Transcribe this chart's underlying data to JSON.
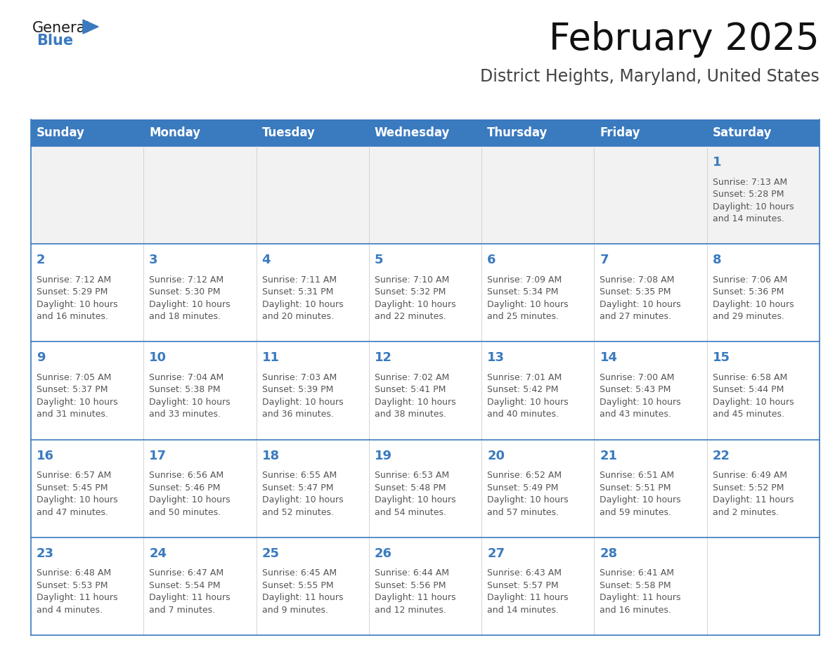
{
  "title": "February 2025",
  "subtitle": "District Heights, Maryland, United States",
  "header_color": "#3a7abf",
  "header_text_color": "#ffffff",
  "cell_bg_white": "#ffffff",
  "cell_bg_gray": "#f2f2f2",
  "cell_border_color": "#3a7abf",
  "day_number_color": "#3a7abf",
  "cell_text_color": "#555555",
  "days_of_week": [
    "Sunday",
    "Monday",
    "Tuesday",
    "Wednesday",
    "Thursday",
    "Friday",
    "Saturday"
  ],
  "weeks": [
    [
      {
        "day": "",
        "info": ""
      },
      {
        "day": "",
        "info": ""
      },
      {
        "day": "",
        "info": ""
      },
      {
        "day": "",
        "info": ""
      },
      {
        "day": "",
        "info": ""
      },
      {
        "day": "",
        "info": ""
      },
      {
        "day": "1",
        "info": "Sunrise: 7:13 AM\nSunset: 5:28 PM\nDaylight: 10 hours\nand 14 minutes."
      }
    ],
    [
      {
        "day": "2",
        "info": "Sunrise: 7:12 AM\nSunset: 5:29 PM\nDaylight: 10 hours\nand 16 minutes."
      },
      {
        "day": "3",
        "info": "Sunrise: 7:12 AM\nSunset: 5:30 PM\nDaylight: 10 hours\nand 18 minutes."
      },
      {
        "day": "4",
        "info": "Sunrise: 7:11 AM\nSunset: 5:31 PM\nDaylight: 10 hours\nand 20 minutes."
      },
      {
        "day": "5",
        "info": "Sunrise: 7:10 AM\nSunset: 5:32 PM\nDaylight: 10 hours\nand 22 minutes."
      },
      {
        "day": "6",
        "info": "Sunrise: 7:09 AM\nSunset: 5:34 PM\nDaylight: 10 hours\nand 25 minutes."
      },
      {
        "day": "7",
        "info": "Sunrise: 7:08 AM\nSunset: 5:35 PM\nDaylight: 10 hours\nand 27 minutes."
      },
      {
        "day": "8",
        "info": "Sunrise: 7:06 AM\nSunset: 5:36 PM\nDaylight: 10 hours\nand 29 minutes."
      }
    ],
    [
      {
        "day": "9",
        "info": "Sunrise: 7:05 AM\nSunset: 5:37 PM\nDaylight: 10 hours\nand 31 minutes."
      },
      {
        "day": "10",
        "info": "Sunrise: 7:04 AM\nSunset: 5:38 PM\nDaylight: 10 hours\nand 33 minutes."
      },
      {
        "day": "11",
        "info": "Sunrise: 7:03 AM\nSunset: 5:39 PM\nDaylight: 10 hours\nand 36 minutes."
      },
      {
        "day": "12",
        "info": "Sunrise: 7:02 AM\nSunset: 5:41 PM\nDaylight: 10 hours\nand 38 minutes."
      },
      {
        "day": "13",
        "info": "Sunrise: 7:01 AM\nSunset: 5:42 PM\nDaylight: 10 hours\nand 40 minutes."
      },
      {
        "day": "14",
        "info": "Sunrise: 7:00 AM\nSunset: 5:43 PM\nDaylight: 10 hours\nand 43 minutes."
      },
      {
        "day": "15",
        "info": "Sunrise: 6:58 AM\nSunset: 5:44 PM\nDaylight: 10 hours\nand 45 minutes."
      }
    ],
    [
      {
        "day": "16",
        "info": "Sunrise: 6:57 AM\nSunset: 5:45 PM\nDaylight: 10 hours\nand 47 minutes."
      },
      {
        "day": "17",
        "info": "Sunrise: 6:56 AM\nSunset: 5:46 PM\nDaylight: 10 hours\nand 50 minutes."
      },
      {
        "day": "18",
        "info": "Sunrise: 6:55 AM\nSunset: 5:47 PM\nDaylight: 10 hours\nand 52 minutes."
      },
      {
        "day": "19",
        "info": "Sunrise: 6:53 AM\nSunset: 5:48 PM\nDaylight: 10 hours\nand 54 minutes."
      },
      {
        "day": "20",
        "info": "Sunrise: 6:52 AM\nSunset: 5:49 PM\nDaylight: 10 hours\nand 57 minutes."
      },
      {
        "day": "21",
        "info": "Sunrise: 6:51 AM\nSunset: 5:51 PM\nDaylight: 10 hours\nand 59 minutes."
      },
      {
        "day": "22",
        "info": "Sunrise: 6:49 AM\nSunset: 5:52 PM\nDaylight: 11 hours\nand 2 minutes."
      }
    ],
    [
      {
        "day": "23",
        "info": "Sunrise: 6:48 AM\nSunset: 5:53 PM\nDaylight: 11 hours\nand 4 minutes."
      },
      {
        "day": "24",
        "info": "Sunrise: 6:47 AM\nSunset: 5:54 PM\nDaylight: 11 hours\nand 7 minutes."
      },
      {
        "day": "25",
        "info": "Sunrise: 6:45 AM\nSunset: 5:55 PM\nDaylight: 11 hours\nand 9 minutes."
      },
      {
        "day": "26",
        "info": "Sunrise: 6:44 AM\nSunset: 5:56 PM\nDaylight: 11 hours\nand 12 minutes."
      },
      {
        "day": "27",
        "info": "Sunrise: 6:43 AM\nSunset: 5:57 PM\nDaylight: 11 hours\nand 14 minutes."
      },
      {
        "day": "28",
        "info": "Sunrise: 6:41 AM\nSunset: 5:58 PM\nDaylight: 11 hours\nand 16 minutes."
      },
      {
        "day": "",
        "info": ""
      }
    ]
  ],
  "logo_general_color": "#1a1a1a",
  "logo_blue_color": "#3a7abf",
  "title_fontsize": 38,
  "subtitle_fontsize": 17,
  "header_fontsize": 12,
  "day_number_fontsize": 13,
  "cell_text_fontsize": 9,
  "background_color": "#ffffff",
  "fig_width": 11.88,
  "fig_height": 9.18,
  "dpi": 100
}
